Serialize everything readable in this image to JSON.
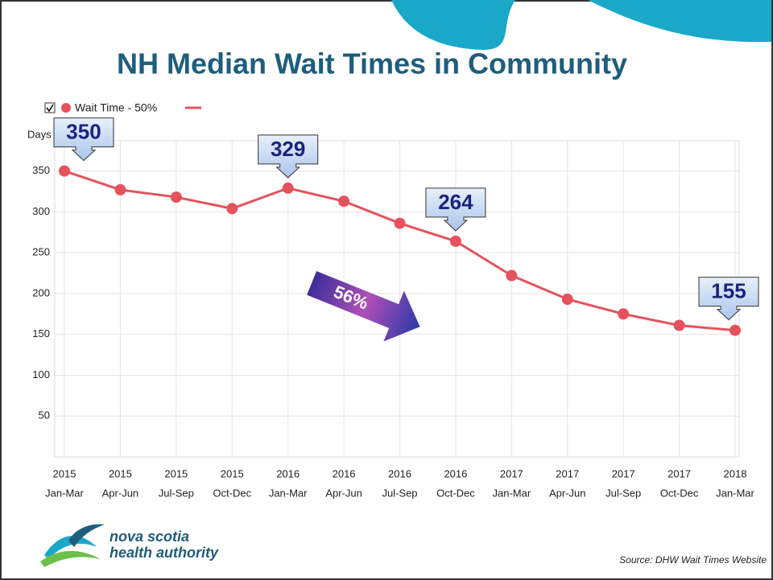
{
  "chart_data": {
    "type": "line",
    "title": "NH Median Wait Times in Community",
    "y_label": "Days",
    "categories": [
      [
        "2015",
        "Jan-Mar"
      ],
      [
        "2015",
        "Apr-Jun"
      ],
      [
        "2015",
        "Jul-Sep"
      ],
      [
        "2015",
        "Oct-Dec"
      ],
      [
        "2016",
        "Jan-Mar"
      ],
      [
        "2016",
        "Apr-Jun"
      ],
      [
        "2016",
        "Jul-Sep"
      ],
      [
        "2016",
        "Oct-Dec"
      ],
      [
        "2017",
        "Jan-Mar"
      ],
      [
        "2017",
        "Apr-Jun"
      ],
      [
        "2017",
        "Jul-Sep"
      ],
      [
        "2017",
        "Oct-Dec"
      ],
      [
        "2018",
        "Jan-Mar"
      ]
    ],
    "series": [
      {
        "name": "Wait Time - 50%",
        "color": "#e5525c",
        "values": [
          350,
          327,
          318,
          304,
          329,
          313,
          286,
          264,
          222,
          193,
          175,
          161,
          155
        ]
      }
    ],
    "callouts": [
      0,
      4,
      7,
      12
    ],
    "annotation": "56%",
    "ylim": [
      0,
      387
    ],
    "yticks": [
      50,
      100,
      150,
      200,
      250,
      300,
      350
    ],
    "grid": true
  },
  "footer": {
    "logo_line1": "nova scotia",
    "logo_line2": "health authority",
    "source": "Source: DHW Wait Times Website"
  }
}
